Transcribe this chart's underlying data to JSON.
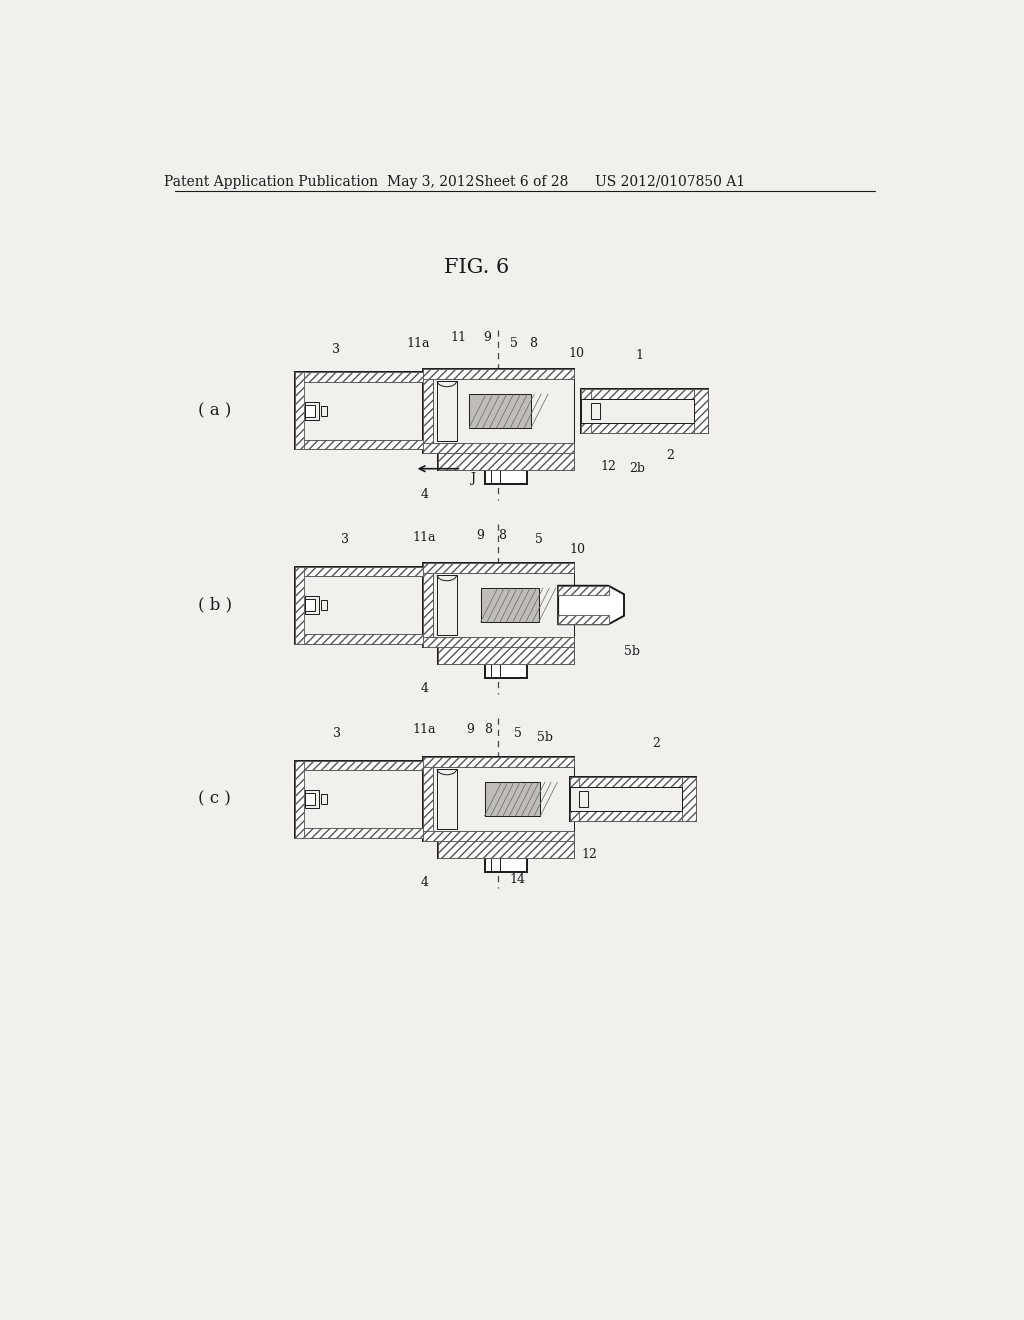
{
  "bg_color": "#f2f0ec",
  "header_text": "Patent Application Publication",
  "header_date": "May 3, 2012",
  "header_sheet": "Sheet 6 of 28",
  "header_patent": "US 2012/0107850 A1",
  "fig_title": "FIG. 6",
  "text_color": "#1a1a1a",
  "line_color": "#1a1a1a",
  "lw_main": 1.4,
  "lw_thin": 0.7,
  "hatch_density": "////",
  "gray_fill": "#c0bcb8"
}
